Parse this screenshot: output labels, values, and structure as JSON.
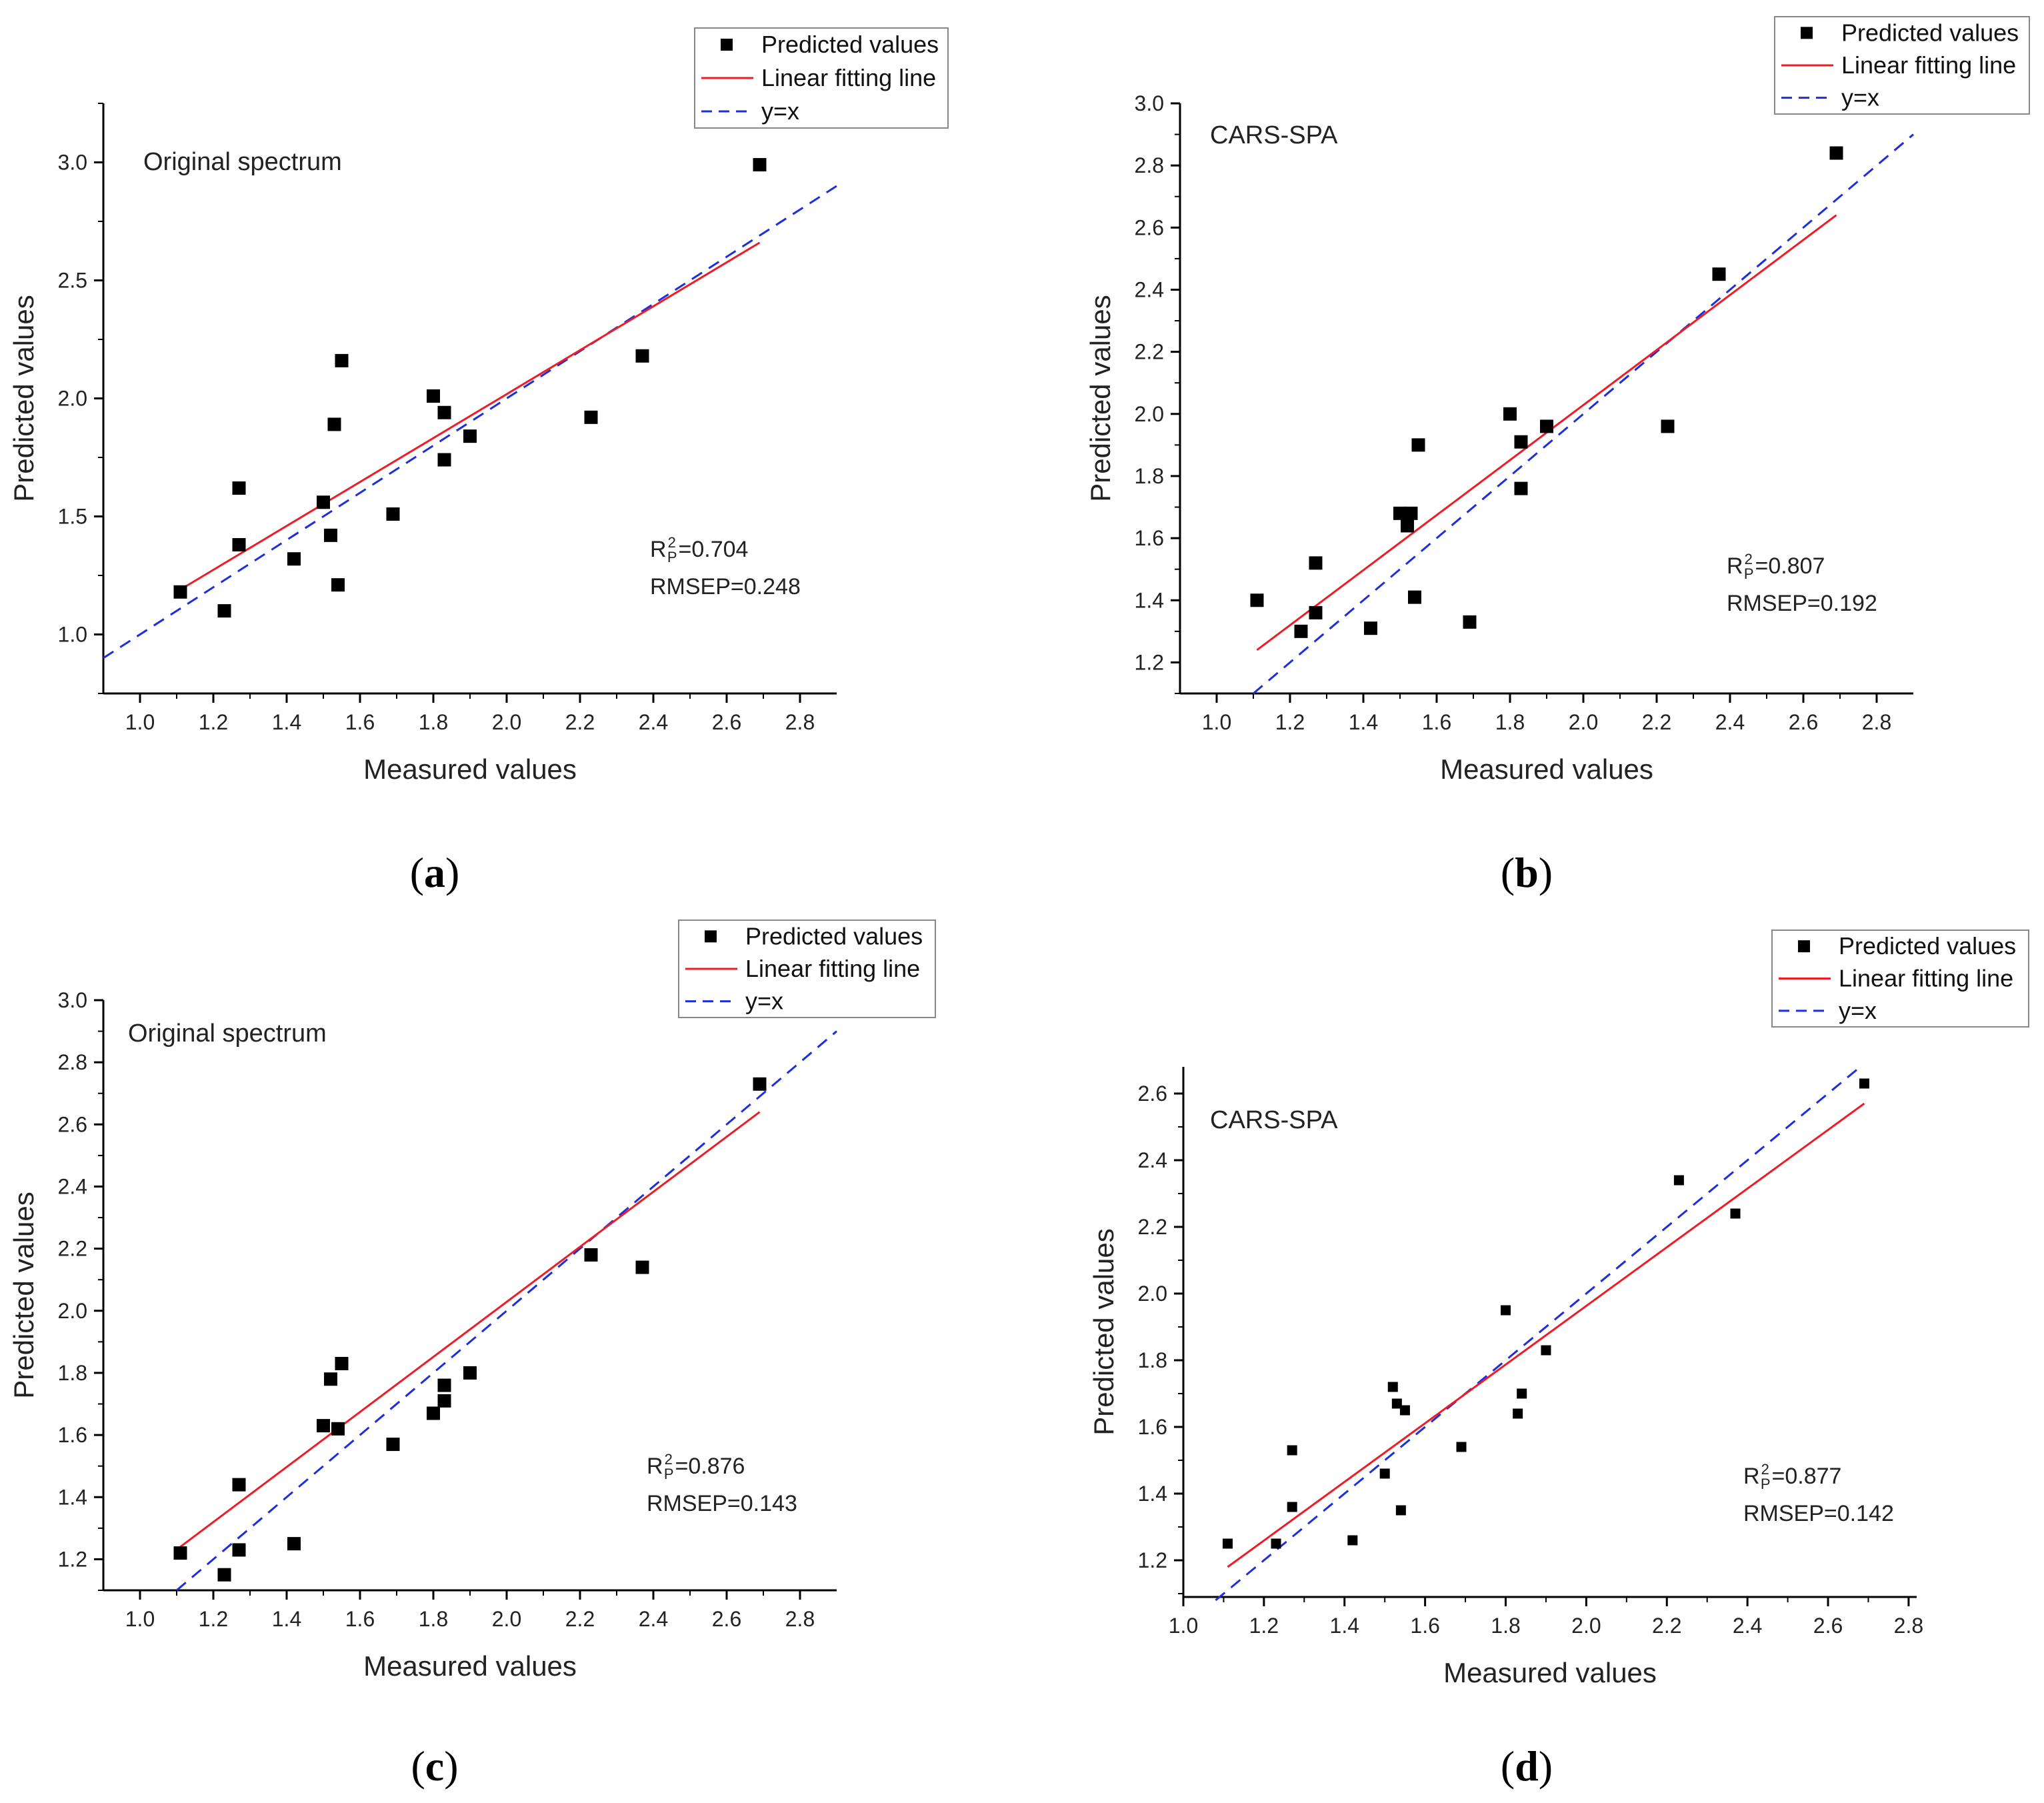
{
  "legend": {
    "predicted": "Predicted values",
    "fit": "Linear fitting line",
    "identity": "y=x"
  },
  "axis_titles": {
    "x": "Measured values",
    "y": "Predicted values"
  },
  "colors": {
    "points": "#000000",
    "fit_line": "#ee1c25",
    "identity_line": "#1c2ee0",
    "axes": "#000000"
  },
  "chart_data": [
    {
      "type": "scatter",
      "panel": "(a)",
      "letter": "a",
      "inset": "Original spectrum",
      "xlabel": "Measured values",
      "ylabel": "Predicted values",
      "xlim": [
        0.9,
        2.9
      ],
      "ylim": [
        0.75,
        3.25
      ],
      "xticks": [
        "1.0",
        "1.2",
        "1.4",
        "1.6",
        "1.8",
        "2.0",
        "2.2",
        "2.4",
        "2.6",
        "2.8"
      ],
      "yticks": [
        "1.0",
        "1.5",
        "2.0",
        "2.5",
        "3.0"
      ],
      "r2_text": "=0.704",
      "rmsep": "RMSEP=0.248",
      "fit_line": [
        [
          1.11,
          1.19
        ],
        [
          2.69,
          2.66
        ]
      ],
      "identity_line": [
        [
          0.9,
          0.9
        ],
        [
          2.9,
          2.9
        ]
      ],
      "points": [
        [
          1.11,
          1.18
        ],
        [
          1.23,
          1.1
        ],
        [
          1.27,
          1.62
        ],
        [
          1.27,
          1.38
        ],
        [
          1.42,
          1.32
        ],
        [
          1.5,
          1.56
        ],
        [
          1.52,
          1.42
        ],
        [
          1.53,
          1.89
        ],
        [
          1.54,
          1.21
        ],
        [
          1.55,
          2.16
        ],
        [
          1.69,
          1.51
        ],
        [
          1.8,
          2.01
        ],
        [
          1.83,
          1.94
        ],
        [
          1.83,
          1.74
        ],
        [
          1.9,
          1.84
        ],
        [
          2.23,
          1.92
        ],
        [
          2.37,
          2.18
        ],
        [
          2.69,
          2.99
        ]
      ]
    },
    {
      "type": "scatter",
      "panel": "(b)",
      "letter": "b",
      "inset": "CARS-SPA",
      "xlabel": "Measured values",
      "ylabel": "Predicted values",
      "xlim": [
        0.9,
        2.9
      ],
      "ylim": [
        1.1,
        3.0
      ],
      "xticks": [
        "1.0",
        "1.2",
        "1.4",
        "1.6",
        "1.8",
        "2.0",
        "2.2",
        "2.4",
        "2.6",
        "2.8"
      ],
      "yticks": [
        "1.2",
        "1.4",
        "1.6",
        "1.8",
        "2.0",
        "2.2",
        "2.4",
        "2.6",
        "2.8",
        "3.0"
      ],
      "r2_text": "=0.807",
      "rmsep": "RMSEP=0.192",
      "fit_line": [
        [
          1.11,
          1.24
        ],
        [
          2.69,
          2.64
        ]
      ],
      "identity_line": [
        [
          1.1,
          1.1
        ],
        [
          2.9,
          2.9
        ]
      ],
      "points": [
        [
          1.11,
          1.4
        ],
        [
          1.23,
          1.3
        ],
        [
          1.27,
          1.52
        ],
        [
          1.27,
          1.36
        ],
        [
          1.42,
          1.31
        ],
        [
          1.5,
          1.68
        ],
        [
          1.52,
          1.64
        ],
        [
          1.53,
          1.68
        ],
        [
          1.54,
          1.41
        ],
        [
          1.55,
          1.9
        ],
        [
          1.69,
          1.33
        ],
        [
          1.8,
          2.0
        ],
        [
          1.83,
          1.91
        ],
        [
          1.83,
          1.76
        ],
        [
          1.9,
          1.96
        ],
        [
          2.23,
          1.96
        ],
        [
          2.37,
          2.45
        ],
        [
          2.69,
          2.84
        ]
      ]
    },
    {
      "type": "scatter",
      "panel": "(c)",
      "letter": "c",
      "inset": "Original spectrum",
      "xlabel": "Measured values",
      "ylabel": "Predicted values",
      "xlim": [
        0.9,
        2.9
      ],
      "ylim": [
        1.1,
        3.0
      ],
      "xticks": [
        "1.0",
        "1.2",
        "1.4",
        "1.6",
        "1.8",
        "2.0",
        "2.2",
        "2.4",
        "2.6",
        "2.8"
      ],
      "yticks": [
        "1.2",
        "1.4",
        "1.6",
        "1.8",
        "2.0",
        "2.2",
        "2.4",
        "2.6",
        "2.8",
        "3.0"
      ],
      "r2_text": "=0.876",
      "rmsep": "RMSEP=0.143",
      "fit_line": [
        [
          1.11,
          1.24
        ],
        [
          2.69,
          2.64
        ]
      ],
      "identity_line": [
        [
          1.1,
          1.1
        ],
        [
          2.9,
          2.9
        ]
      ],
      "points": [
        [
          1.11,
          1.22
        ],
        [
          1.23,
          1.15
        ],
        [
          1.27,
          1.44
        ],
        [
          1.27,
          1.23
        ],
        [
          1.42,
          1.25
        ],
        [
          1.5,
          1.63
        ],
        [
          1.52,
          1.78
        ],
        [
          1.54,
          1.62
        ],
        [
          1.55,
          1.83
        ],
        [
          1.69,
          1.57
        ],
        [
          1.8,
          1.67
        ],
        [
          1.83,
          1.71
        ],
        [
          1.83,
          1.76
        ],
        [
          1.9,
          1.8
        ],
        [
          2.23,
          2.18
        ],
        [
          2.37,
          2.14
        ],
        [
          2.69,
          2.73
        ]
      ]
    },
    {
      "type": "scatter",
      "panel": "(d)",
      "letter": "d",
      "inset": "CARS-SPA",
      "xlabel": "Measured values",
      "ylabel": "Predicted values",
      "xlim": [
        1.0,
        2.82
      ],
      "ylim": [
        1.09,
        2.68
      ],
      "xticks": [
        "1.0",
        "1.2",
        "1.4",
        "1.6",
        "1.8",
        "2.0",
        "2.2",
        "2.4",
        "2.6",
        "2.8"
      ],
      "yticks": [
        "1.2",
        "1.4",
        "1.6",
        "1.8",
        "2.0",
        "2.2",
        "2.4",
        "2.6"
      ],
      "r2_text": "=0.877",
      "rmsep": "RMSEP=0.142",
      "fit_line": [
        [
          1.11,
          1.18
        ],
        [
          2.69,
          2.57
        ]
      ],
      "identity_line": [
        [
          1.08,
          1.08
        ],
        [
          2.68,
          2.68
        ]
      ],
      "points": [
        [
          1.11,
          1.25
        ],
        [
          1.23,
          1.25
        ],
        [
          1.27,
          1.53
        ],
        [
          1.27,
          1.36
        ],
        [
          1.42,
          1.26
        ],
        [
          1.5,
          1.46
        ],
        [
          1.52,
          1.72
        ],
        [
          1.53,
          1.67
        ],
        [
          1.54,
          1.35
        ],
        [
          1.55,
          1.65
        ],
        [
          1.69,
          1.54
        ],
        [
          1.8,
          1.95
        ],
        [
          1.83,
          1.64
        ],
        [
          1.84,
          1.7
        ],
        [
          1.9,
          1.83
        ],
        [
          2.23,
          2.34
        ],
        [
          2.37,
          2.24
        ],
        [
          2.69,
          2.63
        ]
      ]
    }
  ]
}
